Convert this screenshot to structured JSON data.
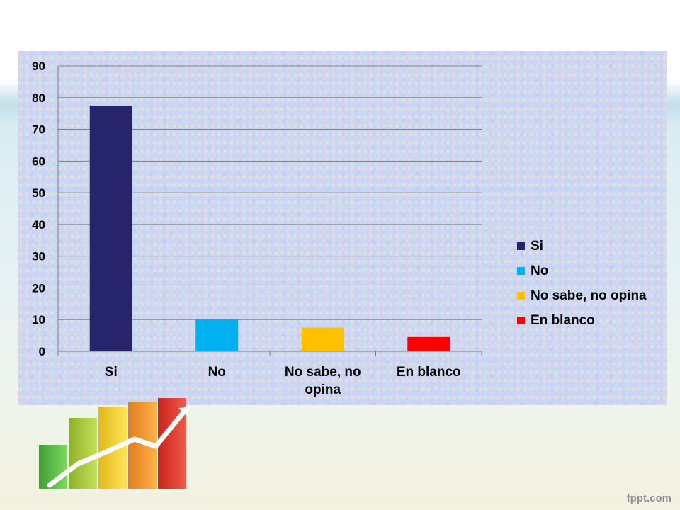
{
  "chart_data": {
    "type": "bar",
    "categories": [
      "Si",
      "No",
      "No sabe, no opina",
      "En blanco"
    ],
    "category_lines": [
      [
        "Si"
      ],
      [
        "No"
      ],
      [
        "No sabe, no",
        "opina"
      ],
      [
        "En blanco"
      ]
    ],
    "values": [
      77.5,
      10,
      7.5,
      4.5
    ],
    "colors": [
      "#26256b",
      "#00b0f0",
      "#ffc000",
      "#ff0000"
    ],
    "ylim": [
      0,
      90
    ],
    "yticks": [
      "0",
      "10",
      "20",
      "30",
      "40",
      "50",
      "60",
      "70",
      "80",
      "90"
    ],
    "grid": true,
    "legend_position": "right",
    "legend": [
      {
        "label": "Si",
        "color": "#26256b"
      },
      {
        "label": "No",
        "color": "#00b0f0"
      },
      {
        "label": "No sabe, no opina",
        "color": "#ffc000"
      },
      {
        "label": "En blanco",
        "color": "#ff0000"
      }
    ]
  },
  "footer": {
    "brand": "fppt.com"
  },
  "decor": {
    "icon": "growth-chart-icon",
    "bar_colors": [
      "#5cc44a",
      "#a8cc3c",
      "#f7d02a",
      "#f59a2a",
      "#e63328"
    ]
  }
}
